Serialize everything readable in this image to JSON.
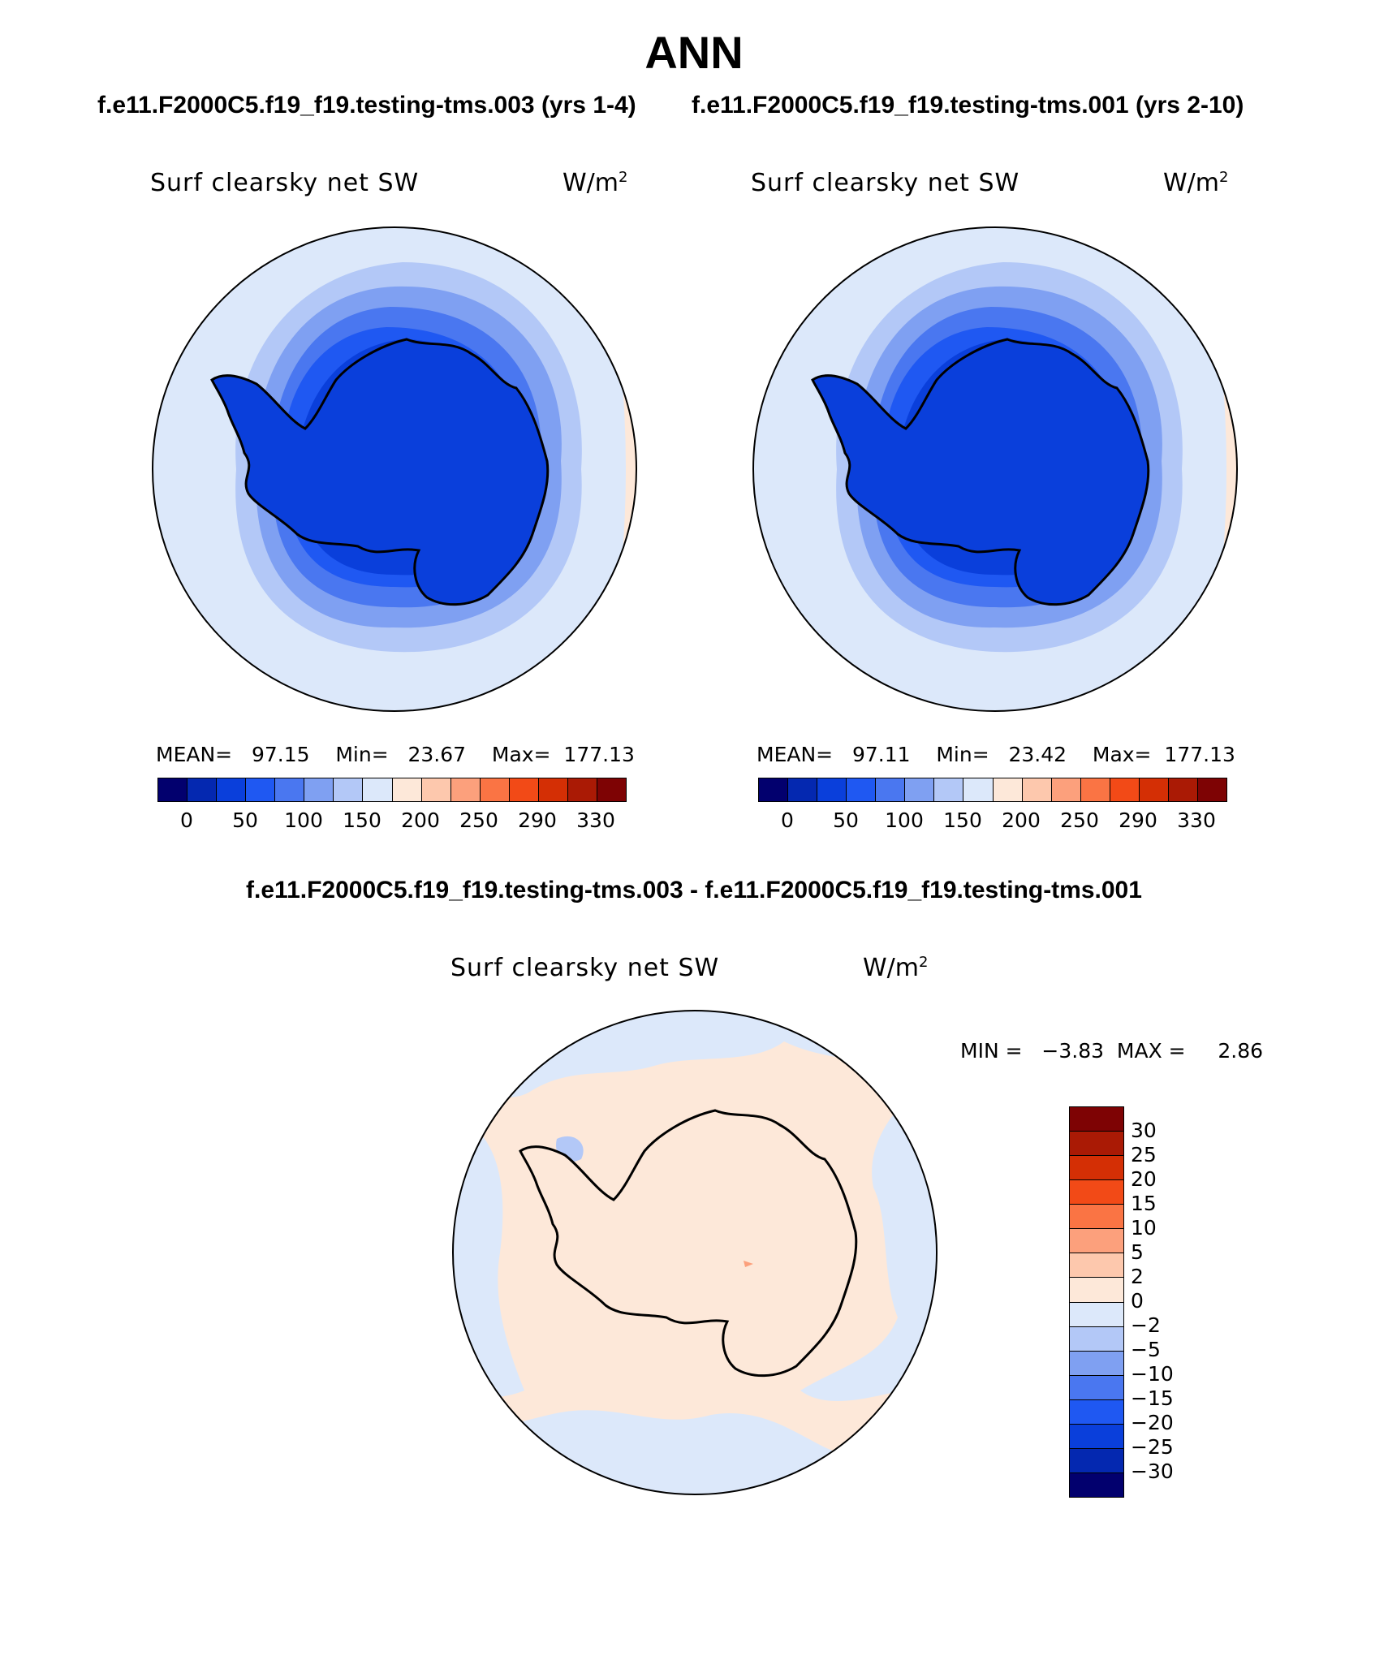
{
  "page": {
    "title": "ANN",
    "subtitle_left": "f.e11.F2000C5.f19_f19.testing-tms.003 (yrs 1-4)",
    "subtitle_right": "f.e11.F2000C5.f19_f19.testing-tms.001 (yrs 2-10)",
    "diff_title": "f.e11.F2000C5.f19_f19.testing-tms.003 - f.e11.F2000C5.f19_f19.testing-tms.001"
  },
  "panels": [
    {
      "variable": "Surf clearsky net SW",
      "units": "W/m",
      "units_exp": "2",
      "stats": {
        "mean_label": "MEAN=",
        "mean": "97.15",
        "min_label": "Min=",
        "min": "23.67",
        "max_label": "Max=",
        "max": "177.13"
      }
    },
    {
      "variable": "Surf clearsky net SW",
      "units": "W/m",
      "units_exp": "2",
      "stats": {
        "mean_label": "MEAN=",
        "mean": "97.11",
        "min_label": "Min=",
        "min": "23.42",
        "max_label": "Max=",
        "max": "177.13"
      }
    }
  ],
  "diff_panel": {
    "variable": "Surf clearsky net SW",
    "units": "W/m",
    "units_exp": "2",
    "min_label": "MIN =",
    "min": "−3.83",
    "max_label": "MAX =",
    "max": "2.86"
  },
  "colorbar_main": {
    "colors": [
      "#02006e",
      "#0428b0",
      "#0a3fdb",
      "#1f58f2",
      "#4a77f0",
      "#7fa0f2",
      "#b3c8f7",
      "#dce8fa",
      "#fde8d9",
      "#fdc8ad",
      "#fca07c",
      "#fa7444",
      "#f24a17",
      "#d42f05",
      "#aa1a05",
      "#7e0304"
    ],
    "tick_labels": [
      "0",
      "50",
      "100",
      "150",
      "200",
      "250",
      "290",
      "330"
    ]
  },
  "colorbar_diff": {
    "colors": [
      "#7e0304",
      "#aa1a05",
      "#d42f05",
      "#f24a17",
      "#fa7444",
      "#fca07c",
      "#fdc8ad",
      "#fde8d9",
      "#dce8fa",
      "#b3c8f7",
      "#7fa0f2",
      "#4a77f0",
      "#1f58f2",
      "#0a3fdb",
      "#0428b0",
      "#02006e"
    ],
    "tick_labels": [
      "30",
      "25",
      "20",
      "15",
      "10",
      "5",
      "2",
      "0",
      "−2",
      "−5",
      "−10",
      "−15",
      "−20",
      "−25",
      "−30"
    ]
  },
  "map_colors": {
    "outer": "#dce8fa",
    "ring2": "#b3c8f7",
    "ring3": "#7fa0f2",
    "ring4": "#4a77f0",
    "ring5": "#1f58f2",
    "inner": "#0a3fdb",
    "edge": "#fde8d9",
    "diff_pos": "#fde8d9",
    "diff_neg": "#dce8fa",
    "diff_neg2": "#b3c8f7",
    "diff_hot": "#fca07c"
  }
}
